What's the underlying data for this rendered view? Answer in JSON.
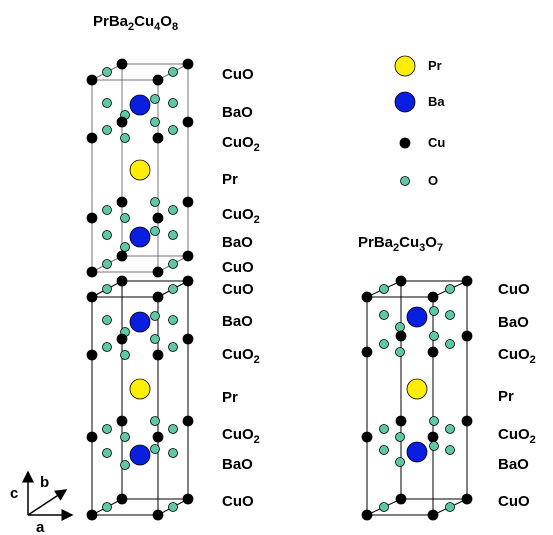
{
  "left_title": "PrBa2Cu4O8",
  "left_layers": [
    "CuO",
    "BaO",
    "CuO2",
    "Pr",
    "CuO2",
    "BaO",
    "CuO",
    "CuO",
    "BaO",
    "CuO2",
    "Pr",
    "CuO2",
    "BaO",
    "CuO"
  ],
  "legend": [
    "Pr",
    "Ba",
    "Cu",
    "O"
  ],
  "right_title": "PrBa2Cu3O7",
  "right_layers": [
    "CuO",
    "BaO",
    "CuO2",
    "Pr",
    "CuO2",
    "BaO",
    "CuO"
  ],
  "axes": {
    "c": "c",
    "b": "b",
    "a": "a"
  }
}
